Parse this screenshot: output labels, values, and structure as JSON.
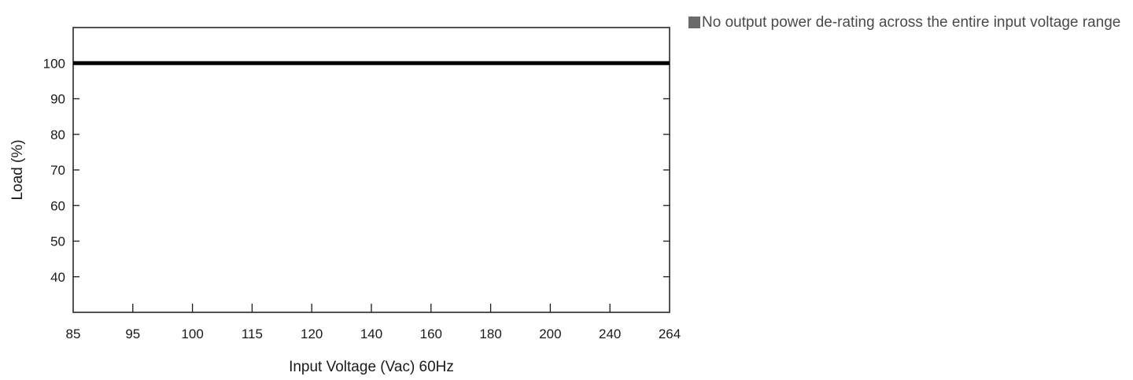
{
  "chart_data": {
    "type": "line",
    "x_tick_labels": [
      "85",
      "95",
      "100",
      "115",
      "120",
      "140",
      "160",
      "180",
      "200",
      "240",
      "264"
    ],
    "y_ticks": [
      40,
      50,
      60,
      70,
      80,
      90,
      100
    ],
    "ylim": [
      30,
      110
    ],
    "xlabel": "Input Voltage (Vac) 60Hz",
    "ylabel": "Load (%)",
    "title": "",
    "grid": false,
    "legend": "none",
    "series": [
      {
        "x": [
          "85",
          "264"
        ],
        "values": [
          100,
          100
        ],
        "color": "#000000"
      }
    ]
  },
  "note": {
    "bullet_color": "#6a6a6a",
    "text": "No output power de-rating across the entire input voltage range"
  }
}
